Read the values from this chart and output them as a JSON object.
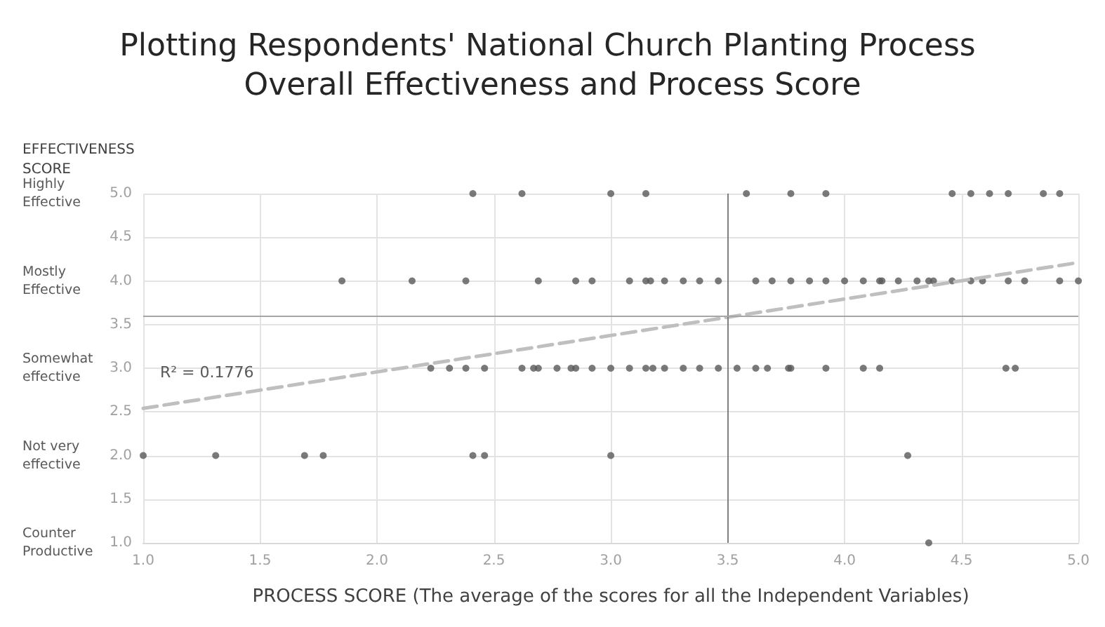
{
  "chart_data": {
    "type": "scatter",
    "title": "Plotting Respondents' National Church Planting Process Overall Effectiveness and Process Score",
    "xlabel": "PROCESS SCORE (The average of the scores for all the Independent Variables)",
    "ylabel": "EFFECTIVENESS SCORE",
    "xlim": [
      1.0,
      5.0
    ],
    "xticks": [
      {
        "value": 1,
        "label": "1.0"
      },
      {
        "value": 1.5,
        "label": "1.5"
      },
      {
        "value": 2,
        "label": "2.0"
      },
      {
        "value": 2.5,
        "label": "2.5"
      },
      {
        "value": 3,
        "label": "3.0"
      },
      {
        "value": 3.5,
        "label": "3.5"
      },
      {
        "value": 4,
        "label": "4.0"
      },
      {
        "value": 4.5,
        "label": "4.5"
      },
      {
        "value": 5,
        "label": "5.0"
      }
    ],
    "ylim": [
      1.0,
      5.0
    ],
    "yticks": [
      {
        "value": 1,
        "label": "1.0"
      },
      {
        "value": 1.5,
        "label": "1.5"
      },
      {
        "value": 2,
        "label": "2.0"
      },
      {
        "value": 2.5,
        "label": "2.5"
      },
      {
        "value": 3,
        "label": "3.0"
      },
      {
        "value": 3.5,
        "label": "3.5"
      },
      {
        "value": 4,
        "label": "4.0"
      },
      {
        "value": 4.5,
        "label": "4.5"
      },
      {
        "value": 5,
        "label": "5.0"
      }
    ],
    "grid": true,
    "marker": "circle",
    "series": [
      {
        "color": "#595959",
        "x": [
          2.41,
          2.62,
          3.0,
          3.15,
          3.58,
          3.77,
          3.92,
          4.46,
          4.54,
          4.62,
          4.7,
          4.85,
          4.92,
          1.85,
          2.15,
          2.38,
          2.69,
          2.85,
          2.92,
          3.08,
          3.15,
          3.17,
          3.23,
          3.31,
          3.38,
          3.46,
          3.62,
          3.69,
          3.77,
          3.85,
          3.92,
          4.0,
          4.08,
          4.15,
          4.16,
          4.23,
          4.31,
          4.36,
          4.38,
          4.46,
          4.54,
          4.59,
          4.7,
          4.77,
          4.92,
          5.0,
          2.23,
          2.31,
          2.38,
          2.46,
          2.62,
          2.67,
          2.69,
          2.77,
          2.83,
          2.85,
          2.92,
          3.0,
          3.08,
          3.15,
          3.18,
          3.23,
          3.31,
          3.38,
          3.46,
          3.54,
          3.62,
          3.67,
          3.76,
          3.77,
          3.92,
          4.08,
          4.15,
          4.69,
          4.73,
          1.0,
          1.31,
          1.69,
          1.77,
          2.41,
          2.46,
          3.0,
          4.27,
          4.36
        ],
        "values": [
          5,
          5,
          5,
          5,
          5,
          5,
          5,
          5,
          5,
          5,
          5,
          5,
          5,
          4,
          4,
          4,
          4,
          4,
          4,
          4,
          4,
          4,
          4,
          4,
          4,
          4,
          4,
          4,
          4,
          4,
          4,
          4,
          4,
          4,
          4,
          4,
          4,
          4,
          4,
          4,
          4,
          4,
          4,
          4,
          4,
          4,
          3,
          3,
          3,
          3,
          3,
          3,
          3,
          3,
          3,
          3,
          3,
          3,
          3,
          3,
          3,
          3,
          3,
          3,
          3,
          3,
          3,
          3,
          3,
          3,
          3,
          3,
          3,
          3,
          3,
          2,
          2,
          2,
          2,
          2,
          2,
          2,
          2,
          1
        ]
      },
      {
        "type": "line",
        "color": "#bfbfbf",
        "line_style": "dashed",
        "marker": "none",
        "x": [
          1.0,
          5.0
        ],
        "values": [
          2.54,
          4.21
        ]
      }
    ],
    "ref_lines": [
      {
        "axis": "x",
        "value": 3.5,
        "color": "#7f7f7f"
      },
      {
        "axis": "y",
        "value": 3.6,
        "color": "#a6a6a6"
      }
    ],
    "annotations": [
      "R² = 0.1776",
      "Highly Effective",
      "Mostly Effective",
      "Somewhat effective",
      "Not very effective",
      "Counter Productive"
    ]
  }
}
